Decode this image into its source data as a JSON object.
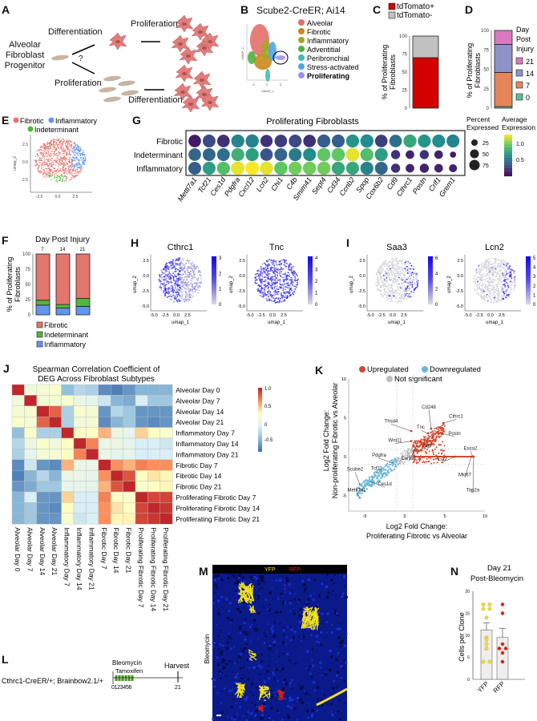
{
  "panels": {
    "A": "A",
    "B": "B",
    "C": "C",
    "D": "D",
    "E": "E",
    "F": "F",
    "G": "G",
    "H": "H",
    "I": "I",
    "J": "J",
    "K": "K",
    "L": "L",
    "M": "M",
    "N": "N"
  },
  "A": {
    "progenitor": "Alveolar Fibroblast Progenitor",
    "q": "?",
    "top_first": "Differentiation",
    "top_second": "Proliferation",
    "bottom_first": "Proliferation",
    "bottom_second": "Differentiation",
    "cell_color": "#e07d7a",
    "progenitor_color": "#c8b4a4"
  },
  "B": {
    "title": "Scube2-CreER; Ai14",
    "xlabel": "UMAP_1",
    "ylabel": "UMAP_2",
    "xticks": [
      "-5",
      "0",
      "5"
    ],
    "legend": [
      {
        "name": "Alveolar",
        "color": "#e2706a"
      },
      {
        "name": "Fibrotic",
        "color": "#c98a1c"
      },
      {
        "name": "Inflammatory",
        "color": "#a3a52a"
      },
      {
        "name": "Adventitial",
        "color": "#4fb240"
      },
      {
        "name": "Peribronchial",
        "color": "#3fbdb8"
      },
      {
        "name": "Stress-activated",
        "color": "#4ea6e6"
      },
      {
        "name": "Proliferating",
        "color": "#9c8ff0",
        "bold": true
      }
    ]
  },
  "chart_data": [
    {
      "id": "C",
      "type": "bar",
      "stacked": true,
      "ylabel": "% of Proliferating Fibroblasts",
      "ylim": [
        0,
        100
      ],
      "yticks": [
        "0",
        "25",
        "50",
        "75",
        "100"
      ],
      "series": [
        {
          "name": "tdTomato+",
          "values": [
            70
          ],
          "color": "#d40000"
        },
        {
          "name": "tdTomato-",
          "values": [
            30
          ],
          "color": "#c0c0c0"
        }
      ]
    },
    {
      "id": "D",
      "type": "bar",
      "stacked": true,
      "ylabel": "% of Proliferating Fibroblasts",
      "ylim": [
        0,
        100
      ],
      "yticks": [
        "0",
        "25",
        "50",
        "75",
        "100"
      ],
      "legend_title": "Day Post Injury",
      "series": [
        {
          "name": "0",
          "values": [
            2
          ],
          "color": "#5fbf95"
        },
        {
          "name": "7",
          "values": [
            44
          ],
          "color": "#e8845a"
        },
        {
          "name": "14",
          "values": [
            36
          ],
          "color": "#8c93c9"
        },
        {
          "name": "21",
          "values": [
            18
          ],
          "color": "#d97ac0"
        }
      ]
    },
    {
      "id": "F",
      "type": "bar",
      "stacked": true,
      "title": "Day Post Injury",
      "categories": [
        "7",
        "14",
        "21"
      ],
      "ylabel": "% of Proliferating Fibroblasts",
      "ylim": [
        0,
        100
      ],
      "yticks": [
        "0",
        "25",
        "50",
        "75",
        "100"
      ],
      "series": [
        {
          "name": "Inflammatory",
          "values": [
            16,
            11,
            14
          ],
          "color": "#6495ed"
        },
        {
          "name": "Indeterminant",
          "values": [
            8,
            6,
            13
          ],
          "color": "#4fb83a"
        },
        {
          "name": "Fibrotic",
          "values": [
            76,
            83,
            73
          ],
          "color": "#e3766d"
        }
      ]
    },
    {
      "id": "G",
      "type": "dotplot",
      "title": "Proliferating Fibroblasts",
      "rows": [
        "Fibrotic",
        "Indeterminant",
        "Inflammatory"
      ],
      "genes": [
        "Mettl7a1",
        "Tcf21",
        "Ces1d",
        "Pdgfra",
        "Cxcl12",
        "Lcn2",
        "Chi1",
        "C4b",
        "Smim41",
        "Sept4",
        "Cd34",
        "Ccnb2",
        "Spop",
        "Cox6b2",
        "Cd9",
        "Cthrc1",
        "Postn",
        "Crlf1",
        "Grem1"
      ],
      "avg_expression": [
        [
          0.1,
          0.3,
          0.2,
          0.6,
          0.6,
          0.2,
          0.25,
          0.3,
          0.2,
          0.4,
          0.4,
          0.7,
          0.65,
          0.25,
          0.5,
          0.8,
          0.7,
          0.65,
          0.6
        ],
        [
          0.45,
          0.45,
          0.5,
          0.85,
          0.75,
          0.35,
          0.45,
          0.55,
          0.65,
          1.0,
          1.0,
          1.3,
          0.95,
          0.75,
          0.2,
          0.15,
          0.2,
          0.15,
          0.1
        ],
        [
          0.4,
          0.75,
          0.95,
          1.3,
          1.35,
          1.3,
          1.0,
          1.05,
          1.05,
          1.05,
          0.8,
          0.8,
          0.6,
          0.45,
          0.2,
          0.15,
          0.15,
          0.15,
          0.15
        ]
      ],
      "pct_expressed": [
        [
          85,
          88,
          85,
          92,
          95,
          80,
          85,
          88,
          85,
          92,
          90,
          92,
          95,
          85,
          85,
          92,
          90,
          90,
          90
        ],
        [
          85,
          88,
          88,
          92,
          92,
          85,
          88,
          90,
          90,
          95,
          95,
          98,
          92,
          90,
          45,
          40,
          45,
          40,
          20
        ],
        [
          88,
          90,
          92,
          98,
          100,
          95,
          95,
          95,
          95,
          95,
          92,
          90,
          92,
          88,
          45,
          40,
          45,
          40,
          35
        ]
      ],
      "size_legend_title": "Percent Expressed",
      "size_legend": [
        "25",
        "50",
        "75"
      ],
      "color_legend_title": "Average Expression",
      "color_ticks": [
        "0.5",
        "1.0"
      ],
      "color_range": [
        0,
        1.35
      ]
    },
    {
      "id": "J",
      "type": "heatmap",
      "title": "Spearman Correlation Coefficient of DEG Across Fibroblast Subtypes",
      "labels": [
        "Alveolar Day 0",
        "Alveolar Day 7",
        "Alveolar Day 14",
        "Alveolar Day 21",
        "Inflammatory Day 7",
        "Inflammatory Day 14",
        "Inflammatory Day 21",
        "Fibrotic Day 7",
        "Fibrotic Day 14",
        "Fibrotic Day 21",
        "Proliferating Fibrotic Day 7",
        "Proliferating Fibrotic Day 14",
        "Proliferating Fibrotic Day 21"
      ],
      "colorbar_ticks": [
        "1.0",
        "0.5",
        "0",
        "-0.5"
      ],
      "range": [
        -0.7,
        1.0
      ],
      "values": [
        [
          1,
          0.15,
          0.2,
          0.25,
          -0.35,
          -0.2,
          -0.25,
          -0.6,
          -0.65,
          -0.55,
          -0.4,
          -0.4,
          -0.4
        ],
        [
          0.15,
          1,
          0.2,
          0.2,
          0.25,
          0.1,
          0.05,
          -0.1,
          -0.4,
          -0.45,
          -0.05,
          -0.3,
          -0.3
        ],
        [
          0.2,
          0.2,
          1,
          0.8,
          -0.25,
          0.25,
          0.2,
          -0.55,
          -0.2,
          -0.3,
          -0.55,
          -0.55,
          -0.55
        ],
        [
          0.25,
          0.2,
          0.8,
          1,
          -0.25,
          0.15,
          0.2,
          -0.6,
          -0.4,
          -0.3,
          -0.55,
          -0.6,
          -0.55
        ],
        [
          -0.35,
          0.25,
          -0.25,
          -0.25,
          1,
          0.3,
          0.3,
          0.55,
          0.1,
          0.05,
          0.45,
          0.3,
          0.25
        ],
        [
          -0.2,
          0.1,
          0.25,
          0.15,
          0.3,
          1,
          0.7,
          0.1,
          0.1,
          0.05,
          -0.05,
          -0.05,
          -0.1
        ],
        [
          -0.25,
          0.05,
          0.2,
          0.2,
          0.3,
          0.7,
          1,
          0.1,
          0.05,
          0.05,
          -0.05,
          -0.05,
          -0.05
        ],
        [
          -0.6,
          -0.1,
          -0.55,
          -0.6,
          0.55,
          0.1,
          0.1,
          1,
          0.65,
          0.55,
          0.7,
          0.65,
          0.65
        ],
        [
          -0.65,
          -0.4,
          -0.2,
          -0.4,
          0.1,
          0.1,
          0.05,
          0.65,
          1,
          0.85,
          0.3,
          0.4,
          0.35
        ],
        [
          -0.55,
          -0.45,
          -0.3,
          -0.3,
          0.05,
          0.05,
          0.05,
          0.55,
          0.85,
          1,
          0.25,
          0.3,
          0.35
        ],
        [
          -0.4,
          -0.05,
          -0.55,
          -0.55,
          0.45,
          -0.05,
          -0.05,
          0.7,
          0.3,
          0.25,
          1,
          0.9,
          0.9
        ],
        [
          -0.4,
          -0.3,
          -0.55,
          -0.6,
          0.3,
          -0.05,
          -0.05,
          0.65,
          0.4,
          0.3,
          0.9,
          1,
          0.95
        ],
        [
          -0.4,
          -0.3,
          -0.55,
          -0.55,
          0.25,
          -0.1,
          -0.05,
          0.65,
          0.35,
          0.35,
          0.9,
          0.95,
          1
        ]
      ]
    },
    {
      "id": "K",
      "type": "scatter",
      "xlabel": "Log2 Fold Change: Proliferating Fibrotic vs Alveolar",
      "ylabel": "Log2 Fold Change: Non-proliferating Fibrotic vs Alveolar",
      "xlim": [
        -7,
        10
      ],
      "ylim": [
        -7,
        10
      ],
      "xticks": [
        "-5",
        "0",
        "5",
        "10"
      ],
      "yticks": [
        "-5",
        "0",
        "5",
        "10"
      ],
      "legend": [
        {
          "name": "Upregulated",
          "color": "#d2482e"
        },
        {
          "name": "Downregulated",
          "color": "#6ab8d8"
        },
        {
          "name": "Not significant",
          "color": "#bdbdbd"
        }
      ],
      "labeled_genes": [
        {
          "gene": "Cd248",
          "x": 3.3,
          "y": 3.6,
          "lx": 3.0,
          "ly": 6.2
        },
        {
          "gene": "Cthrc1",
          "x": 4.8,
          "y": 4.3,
          "lx": 6.4,
          "ly": 5.0
        },
        {
          "gene": "Postn",
          "x": 4.6,
          "y": 3.0,
          "lx": 6.2,
          "ly": 2.8
        },
        {
          "gene": "Tnc",
          "x": 2.9,
          "y": 3.0,
          "lx": 2.0,
          "ly": 3.6
        },
        {
          "gene": "Thsd4",
          "x": 0.8,
          "y": 3.3,
          "lx": -1.7,
          "ly": 4.4
        },
        {
          "gene": "Wnt11",
          "x": 0.8,
          "y": 2.0,
          "lx": -1.2,
          "ly": 1.9
        },
        {
          "gene": "Cd9",
          "x": 3.4,
          "y": 1.6,
          "lx": 2.8,
          "ly": 1.2
        },
        {
          "gene": "Col1a1",
          "x": 1.5,
          "y": 1.4,
          "lx": 0.5,
          "ly": -0.4
        },
        {
          "gene": "Pdgfra",
          "x": -1.5,
          "y": -0.8,
          "lx": -3.2,
          "ly": 0.0
        },
        {
          "gene": "Tcf21",
          "x": -3.5,
          "y": -2.0,
          "lx": -3.5,
          "ly": -1.7
        },
        {
          "gene": "Scube2",
          "x": -5.6,
          "y": -3.6,
          "lx": -6.2,
          "ly": -1.8
        },
        {
          "gene": "Ces1d",
          "x": -4.3,
          "y": -3.2,
          "lx": -2.5,
          "ly": -3.7
        },
        {
          "gene": "Mettl7a1",
          "x": -5.6,
          "y": -5.3,
          "lx": -6.0,
          "ly": -4.5
        },
        {
          "gene": "Esco2",
          "x": 8.5,
          "y": 0,
          "lx": 8.2,
          "ly": 0.9
        },
        {
          "gene": "Ect2",
          "x": 6.3,
          "y": 0,
          "lx": 4.7,
          "ly": -0.5
        },
        {
          "gene": "Mki67",
          "x": 8.3,
          "y": 0,
          "lx": 7.5,
          "ly": -2.5
        },
        {
          "gene": "Top2a",
          "x": 8.6,
          "y": 0,
          "lx": 8.5,
          "ly": -4.5
        }
      ]
    },
    {
      "id": "N",
      "type": "bar",
      "title": "Day 21 Post-Bleomycin",
      "ylabel": "Cells per Clone",
      "categories": [
        "YFP",
        "RFP"
      ],
      "ylim": [
        0,
        20
      ],
      "yticks": [
        "0",
        "5",
        "10",
        "15",
        "20"
      ],
      "means": [
        11.2,
        9.5
      ],
      "sem": [
        1.6,
        2.1
      ],
      "points": [
        [
          17,
          17,
          16,
          16,
          14,
          9.5,
          9,
          8,
          7,
          4,
          4
        ],
        [
          17,
          15,
          8,
          7,
          7,
          6,
          4
        ]
      ],
      "colors": [
        "#f5e21b",
        "#e0200f"
      ]
    }
  ],
  "E": {
    "legend": [
      {
        "name": "Fibrotic",
        "color": "#e3766d"
      },
      {
        "name": "Inflammatory",
        "color": "#6495ed"
      },
      {
        "name": "Indeterminant",
        "color": "#4fb83a"
      }
    ],
    "xlabel": "umap_1",
    "ylabel": "umap_2",
    "xticks": [
      "-2.5",
      "0.0",
      "2.5"
    ],
    "yticks": [
      "2.5",
      "0.0",
      "-2.5"
    ]
  },
  "H": {
    "plots": [
      {
        "gene": "Cthrc1",
        "ticks": [
          "3",
          "2",
          "1",
          "0"
        ]
      },
      {
        "gene": "Tnc",
        "ticks": [
          "4",
          "3",
          "2",
          "1",
          "0"
        ]
      }
    ]
  },
  "I": {
    "plots": [
      {
        "gene": "Saa3",
        "ticks": [
          "6",
          "4",
          "2",
          "0"
        ]
      },
      {
        "gene": "Lcn2",
        "ticks": [
          "5",
          "4",
          "3",
          "2",
          "1",
          "0"
        ]
      }
    ]
  },
  "feature_axes": {
    "xlabel": "umap_1",
    "ylabel": "umap_2",
    "xticks": [
      "-5.0",
      "-2.5",
      "0.0",
      "2.5"
    ],
    "yticks": [
      "2.5",
      "0.0",
      "-2.5",
      "-5.0"
    ]
  },
  "L": {
    "genotype": "Cthrc1-CreER/+; Brainbow2.1/+",
    "bleomycin": "Bleomycin",
    "tamoxifen": "Tamoxifen",
    "harvest": "Harvest",
    "days": "0123456",
    "end_day": "21"
  },
  "M": {
    "channel1": "YFP",
    "channel2": "RFP",
    "side_label": "Bleomycin"
  }
}
